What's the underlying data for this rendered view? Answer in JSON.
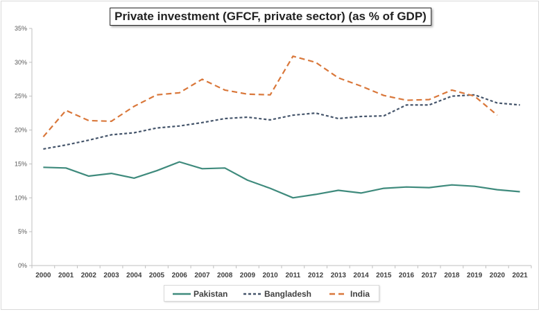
{
  "chart_data": {
    "type": "line",
    "title": "Private investment (GFCF, private sector) (as % of GDP)",
    "xlabel": "",
    "ylabel": "",
    "x": [
      "2000",
      "2001",
      "2002",
      "2003",
      "2004",
      "2005",
      "2006",
      "2007",
      "2008",
      "2009",
      "2010",
      "2011",
      "2012",
      "2013",
      "2014",
      "2015",
      "2016",
      "2017",
      "2018",
      "2019",
      "2020",
      "2021"
    ],
    "ylim": [
      0,
      35
    ],
    "yticks": [
      "0%",
      "5%",
      "10%",
      "15%",
      "20%",
      "25%",
      "30%",
      "35%"
    ],
    "grid": false,
    "legend_position": "bottom",
    "series": [
      {
        "name": "Pakistan",
        "color": "#3e8a7c",
        "style": "solid",
        "values": [
          14.5,
          14.4,
          13.2,
          13.6,
          12.9,
          14.0,
          15.3,
          14.3,
          14.4,
          12.6,
          11.4,
          10.0,
          10.5,
          11.1,
          10.7,
          11.4,
          11.6,
          11.5,
          11.9,
          11.7,
          11.2,
          10.9
        ]
      },
      {
        "name": "Bangladesh",
        "color": "#44546a",
        "style": "dashed",
        "values": [
          17.2,
          17.8,
          18.5,
          19.3,
          19.6,
          20.3,
          20.6,
          21.1,
          21.7,
          21.9,
          21.5,
          22.2,
          22.5,
          21.7,
          22.0,
          22.1,
          23.7,
          23.7,
          25.0,
          25.2,
          24.0,
          23.7
        ]
      },
      {
        "name": "India",
        "color": "#d9773a",
        "style": "long-dash",
        "values": [
          19.0,
          22.9,
          21.4,
          21.3,
          23.5,
          25.2,
          25.5,
          27.5,
          25.9,
          25.3,
          25.2,
          30.9,
          30.0,
          27.7,
          26.5,
          25.1,
          24.4,
          24.5,
          25.9,
          25.0,
          22.2,
          null
        ]
      }
    ]
  }
}
